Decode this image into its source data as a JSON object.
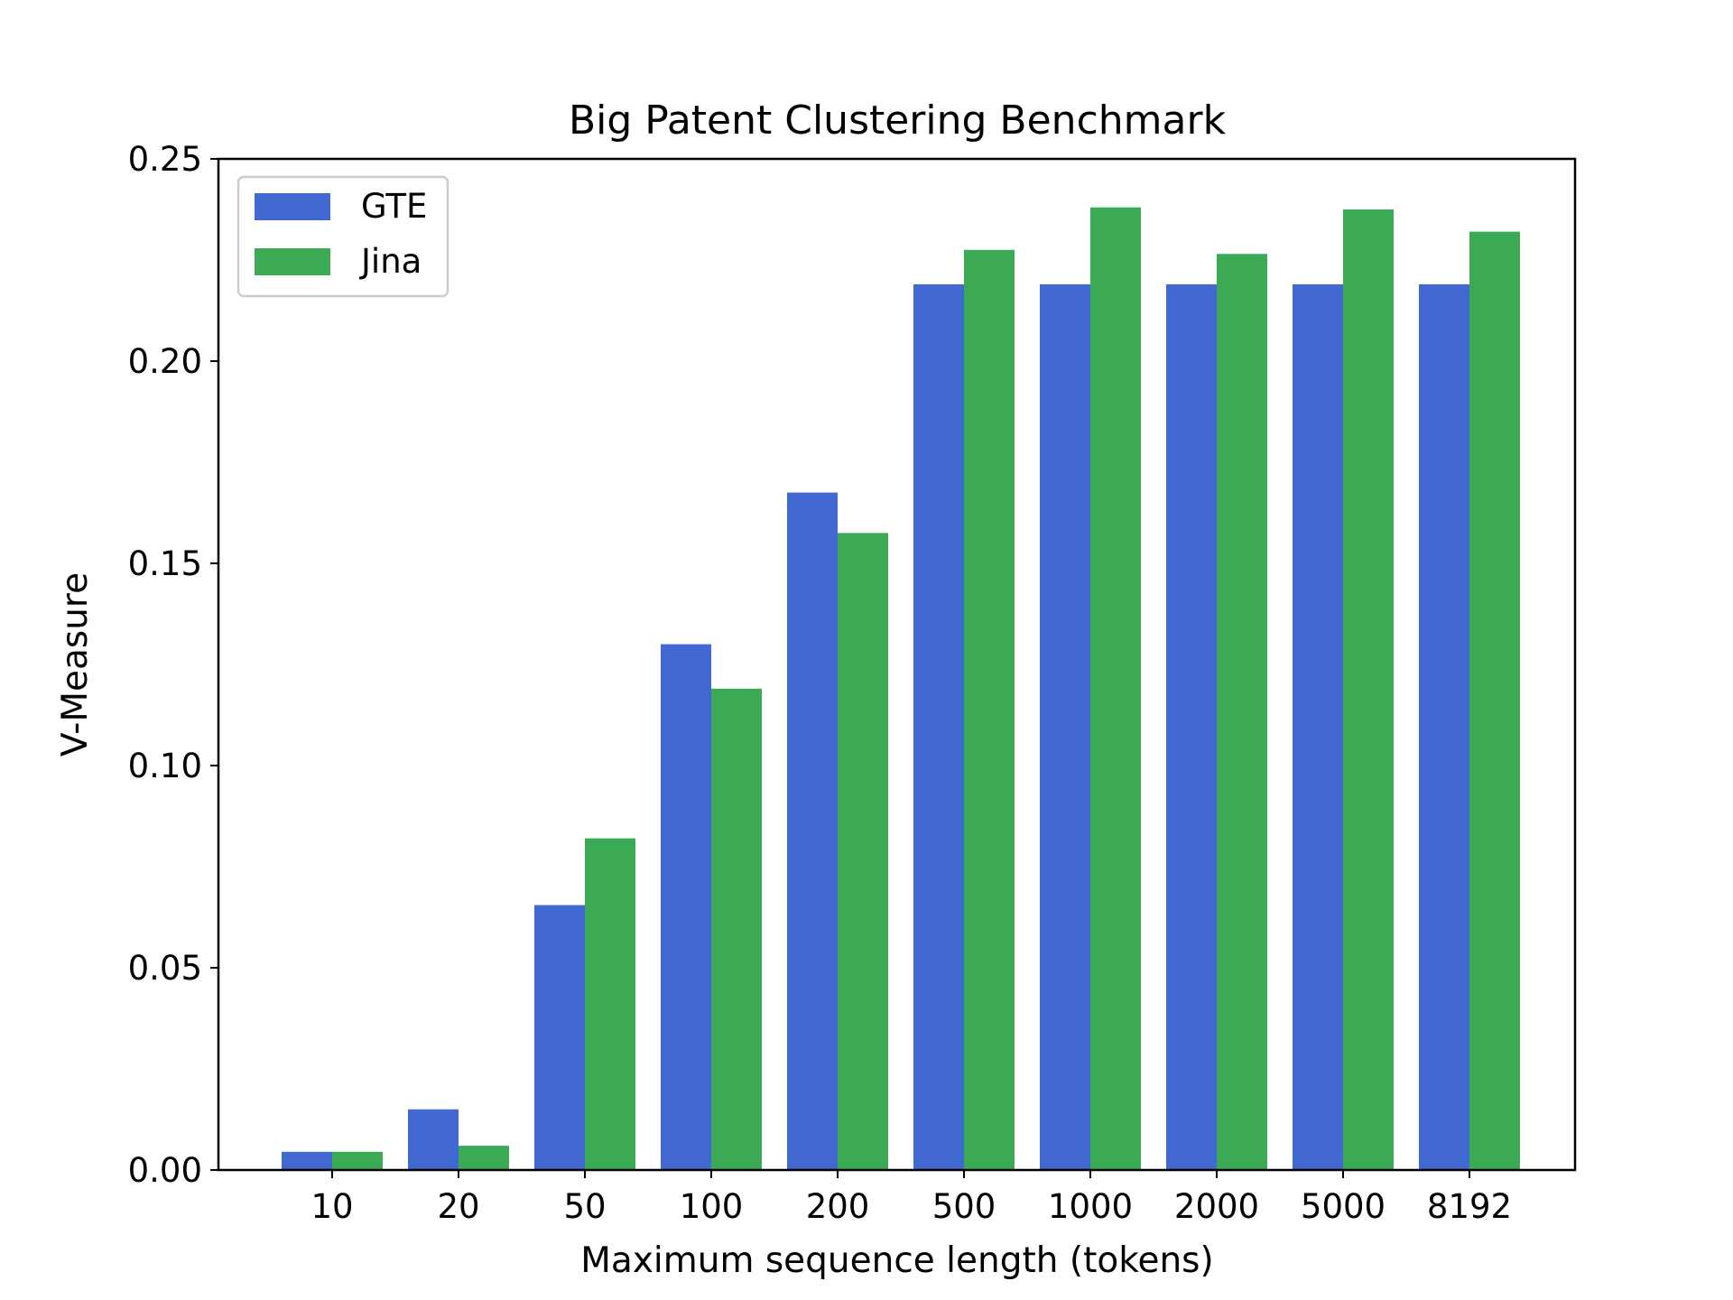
{
  "chart_data": {
    "type": "bar",
    "title": "Big Patent Clustering Benchmark",
    "xlabel": "Maximum sequence length (tokens)",
    "ylabel": "V-Measure",
    "categories": [
      "10",
      "20",
      "50",
      "100",
      "200",
      "500",
      "1000",
      "2000",
      "5000",
      "8192"
    ],
    "series": [
      {
        "name": "GTE",
        "color": "#4169d1",
        "values": [
          0.0045,
          0.015,
          0.0655,
          0.13,
          0.1675,
          0.219,
          0.219,
          0.219,
          0.219,
          0.219
        ]
      },
      {
        "name": "Jina",
        "color": "#3caa54",
        "values": [
          0.0045,
          0.006,
          0.082,
          0.119,
          0.1575,
          0.2275,
          0.238,
          0.2265,
          0.2375,
          0.232
        ]
      }
    ],
    "ylim": [
      0,
      0.25
    ],
    "yticks": [
      "0.00",
      "0.05",
      "0.10",
      "0.15",
      "0.20",
      "0.25"
    ],
    "legend": "top-left",
    "grid": false
  }
}
